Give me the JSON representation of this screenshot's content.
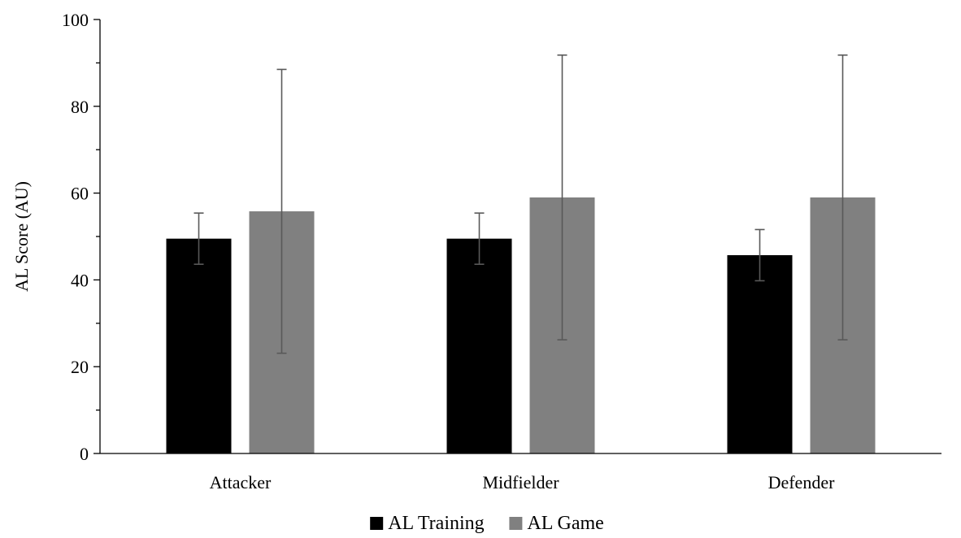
{
  "chart_data": {
    "type": "bar",
    "categories": [
      "Attacker",
      "Midfielder",
      "Defender"
    ],
    "series": [
      {
        "name": "AL Training",
        "color": "#000000",
        "values": [
          49.5,
          49.5,
          45.7
        ],
        "error": [
          5.9,
          5.9,
          5.9
        ]
      },
      {
        "name": "AL Game",
        "color": "#808080",
        "values": [
          55.8,
          59.0,
          59.0
        ],
        "error": [
          32.7,
          32.8,
          32.8
        ]
      }
    ],
    "title": "",
    "xlabel": "",
    "ylabel": "AL Score (AU)",
    "ylim": [
      0,
      100
    ],
    "yticks": [
      0,
      20,
      40,
      60,
      80,
      100
    ],
    "ytick_labels": [
      "0",
      "20",
      "40",
      "60",
      "80",
      "100"
    ],
    "minor_yticks": [
      10,
      30,
      50,
      70,
      90
    ],
    "grid": false,
    "error_bar_color": "#595959",
    "legend_position": "bottom-center"
  }
}
